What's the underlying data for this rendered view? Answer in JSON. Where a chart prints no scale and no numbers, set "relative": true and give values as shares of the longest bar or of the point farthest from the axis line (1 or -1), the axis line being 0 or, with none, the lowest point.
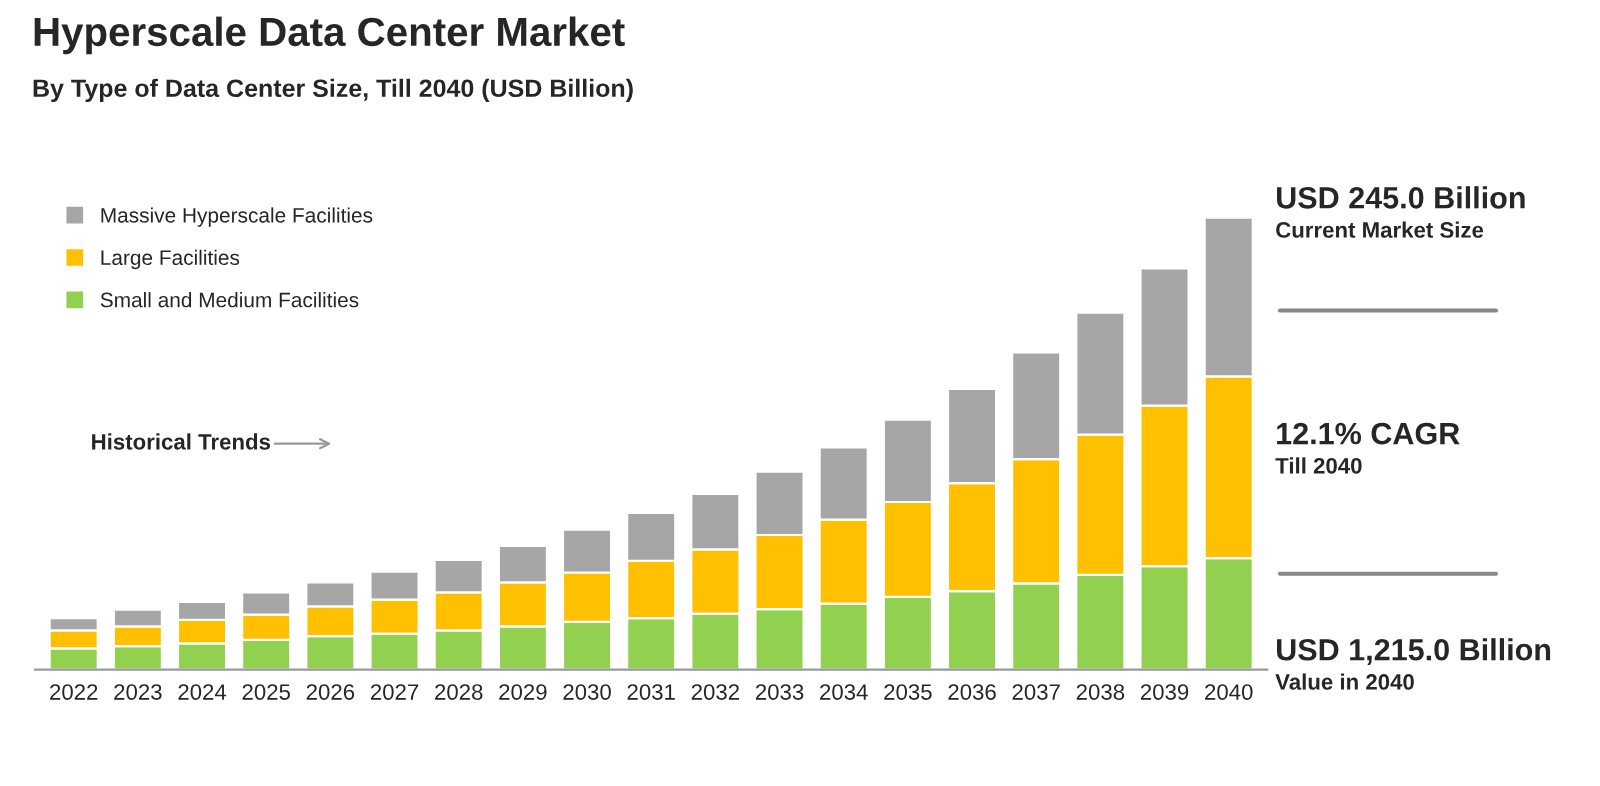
{
  "chart_data": {
    "type": "bar",
    "title": "Hyperscale Data Center Market",
    "subtitle": "By Type of Data Center Size, Till 2040 (USD Billion)",
    "categories": [
      "2022",
      "2023",
      "2024",
      "2025",
      "2026",
      "2027",
      "2028",
      "2029",
      "2030",
      "2031",
      "2032",
      "2033",
      "2034",
      "2035",
      "2036",
      "2037",
      "2038",
      "2039",
      "2040"
    ],
    "stacked": true,
    "relative": true,
    "legend": "top left",
    "series": [
      {
        "name": "Small and Medium Facilities",
        "color": "#92d050",
        "values": [
          0.047,
          0.052,
          0.058,
          0.066,
          0.074,
          0.08,
          0.087,
          0.096,
          0.106,
          0.114,
          0.124,
          0.134,
          0.146,
          0.161,
          0.174,
          0.191,
          0.21,
          0.229,
          0.247
        ]
      },
      {
        "name": "Large Facilities",
        "color": "#ffc000",
        "values": [
          0.04,
          0.044,
          0.052,
          0.056,
          0.066,
          0.075,
          0.084,
          0.097,
          0.109,
          0.127,
          0.142,
          0.164,
          0.186,
          0.21,
          0.239,
          0.275,
          0.31,
          0.355,
          0.402
        ]
      },
      {
        "name": "Massive Hyperscale Facilities",
        "color": "#a6a6a6",
        "values": [
          0.027,
          0.037,
          0.04,
          0.049,
          0.053,
          0.062,
          0.072,
          0.081,
          0.095,
          0.106,
          0.123,
          0.14,
          0.16,
          0.182,
          0.208,
          0.236,
          0.27,
          0.304,
          0.351
        ]
      }
    ],
    "annotations": [
      "Historical Trends",
      "USD 245.0 Billion",
      "Current Market Size",
      "12.1% CAGR",
      "Till 2040",
      "USD 1,215.0 Billion",
      "Value in 2040"
    ]
  }
}
